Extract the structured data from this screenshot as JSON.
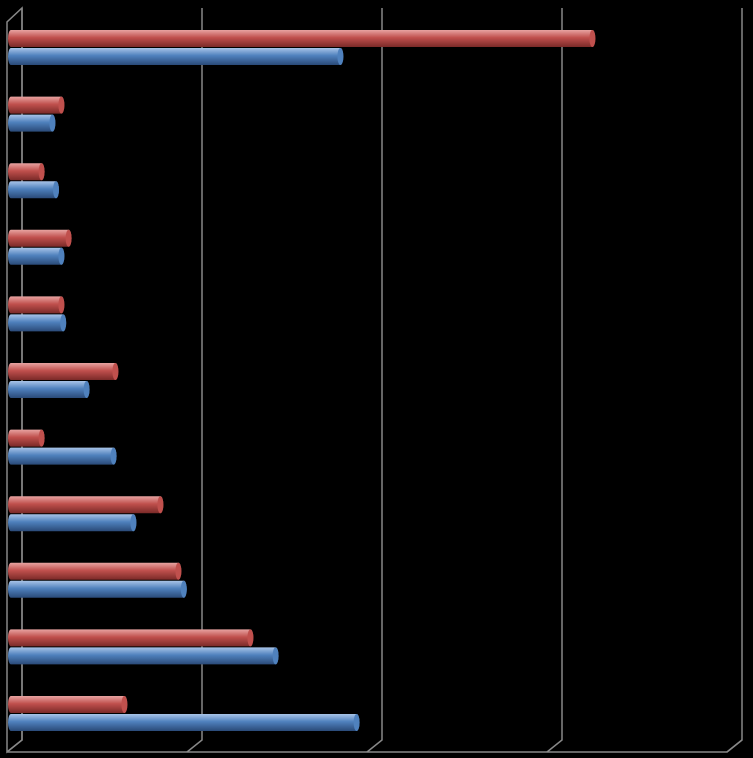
{
  "chart_data": {
    "type": "bar",
    "orientation": "horizontal",
    "categories": [
      null,
      null,
      null,
      null,
      null,
      null,
      null,
      null,
      null,
      null,
      null
    ],
    "series": [
      {
        "color": "#c0504d",
        "values": [
          3.23,
          0.28,
          0.17,
          0.32,
          0.28,
          0.58,
          0.17,
          0.83,
          0.93,
          1.33,
          0.63
        ]
      },
      {
        "color": "#4f81bd",
        "values": [
          1.83,
          0.23,
          0.25,
          0.28,
          0.29,
          0.42,
          0.57,
          0.68,
          0.96,
          1.47,
          1.92
        ]
      }
    ],
    "xlim": [
      0,
      4
    ],
    "xticks": [
      0,
      1,
      2,
      3,
      4
    ],
    "grid": true
  }
}
